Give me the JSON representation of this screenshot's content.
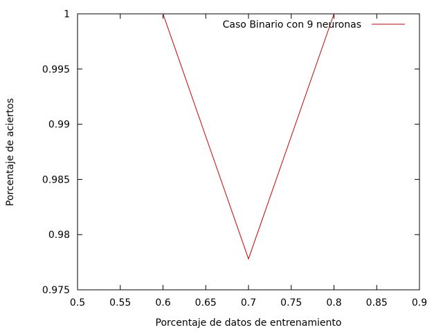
{
  "chart_data": {
    "type": "line",
    "xlabel": "Porcentaje de datos de entrenamiento",
    "ylabel": "Porcentaje de aciertos",
    "xlim": [
      0.5,
      0.9
    ],
    "ylim": [
      0.975,
      1.0
    ],
    "xticks": [
      "0.5",
      "0.55",
      "0.6",
      "0.65",
      "0.7",
      "0.75",
      "0.8",
      "0.85",
      "0.9"
    ],
    "yticks": [
      "0.975",
      "0.98",
      "0.985",
      "0.99",
      "0.995",
      "1"
    ],
    "grid": false,
    "legend_position": "top-right",
    "series": [
      {
        "name": "Caso Binario con 9 neuronas",
        "color": "#cc0000",
        "x": [
          0.6,
          0.7,
          0.8
        ],
        "y": [
          1.0,
          0.9778,
          1.0
        ]
      }
    ]
  }
}
